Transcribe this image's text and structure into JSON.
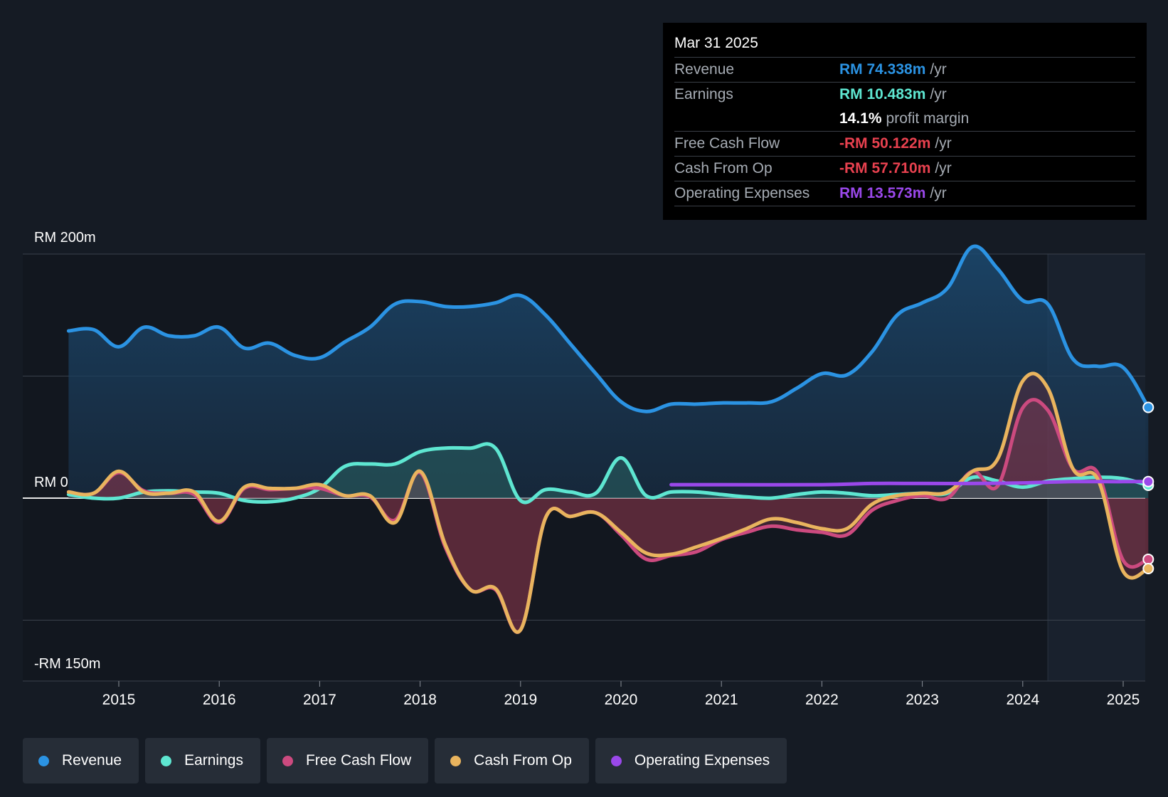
{
  "colors": {
    "revenue": "#2b93e3",
    "earnings": "#5ee6d1",
    "fcf": "#cc4a7f",
    "cfo": "#e9b45e",
    "opex": "#9a48ea",
    "negative": "#e8414f",
    "background": "#151b24"
  },
  "tooltip": {
    "date": "Mar 31 2025",
    "rows": [
      {
        "name": "Revenue",
        "value": "RM 74.338m",
        "unit": "/yr",
        "color_key": "revenue"
      },
      {
        "name": "Earnings",
        "value": "RM 10.483m",
        "unit": "/yr",
        "color_key": "earnings"
      },
      {
        "name": "",
        "value": "14.1%",
        "unit": "profit margin",
        "color_key": "white"
      },
      {
        "name": "Free Cash Flow",
        "value": "-RM 50.122m",
        "unit": "/yr",
        "color_key": "negative"
      },
      {
        "name": "Cash From Op",
        "value": "-RM 57.710m",
        "unit": "/yr",
        "color_key": "negative"
      },
      {
        "name": "Operating Expenses",
        "value": "RM 13.573m",
        "unit": "/yr",
        "color_key": "opex"
      }
    ]
  },
  "legend": [
    {
      "label": "Revenue",
      "color_key": "revenue"
    },
    {
      "label": "Earnings",
      "color_key": "earnings"
    },
    {
      "label": "Free Cash Flow",
      "color_key": "fcf"
    },
    {
      "label": "Cash From Op",
      "color_key": "cfo"
    },
    {
      "label": "Operating Expenses",
      "color_key": "opex"
    }
  ],
  "chart_data": {
    "type": "area",
    "title": "",
    "xlabel": "",
    "ylabel": "",
    "y_axis_labels": {
      "top": "RM 200m",
      "zero": "RM 0",
      "bottom": "-RM 150m"
    },
    "ylim": [
      -150,
      200
    ],
    "xlim": [
      2014.5,
      2025.25
    ],
    "x_ticks": [
      2015,
      2016,
      2017,
      2018,
      2019,
      2020,
      2021,
      2022,
      2023,
      2024,
      2025
    ],
    "x_tick_labels": [
      "2015",
      "2016",
      "2017",
      "2018",
      "2019",
      "2020",
      "2021",
      "2022",
      "2023",
      "2024",
      "2025"
    ],
    "forecast_start": 2024.25,
    "series": [
      {
        "name": "Revenue",
        "key": "revenue",
        "points": [
          [
            2014.5,
            137
          ],
          [
            2014.75,
            138
          ],
          [
            2015.0,
            124
          ],
          [
            2015.25,
            140
          ],
          [
            2015.5,
            133
          ],
          [
            2015.75,
            133
          ],
          [
            2016.0,
            140
          ],
          [
            2016.25,
            123
          ],
          [
            2016.5,
            127
          ],
          [
            2016.75,
            117
          ],
          [
            2017.0,
            115
          ],
          [
            2017.25,
            128
          ],
          [
            2017.5,
            140
          ],
          [
            2017.75,
            159
          ],
          [
            2018.0,
            161
          ],
          [
            2018.25,
            157
          ],
          [
            2018.5,
            157
          ],
          [
            2018.75,
            160
          ],
          [
            2019.0,
            166
          ],
          [
            2019.25,
            150
          ],
          [
            2019.5,
            126
          ],
          [
            2019.75,
            102
          ],
          [
            2020.0,
            79
          ],
          [
            2020.25,
            71
          ],
          [
            2020.5,
            77
          ],
          [
            2020.75,
            77
          ],
          [
            2021.0,
            78
          ],
          [
            2021.25,
            78
          ],
          [
            2021.5,
            79
          ],
          [
            2021.75,
            90
          ],
          [
            2022.0,
            102
          ],
          [
            2022.25,
            101
          ],
          [
            2022.5,
            120
          ],
          [
            2022.75,
            150
          ],
          [
            2023.0,
            160
          ],
          [
            2023.25,
            172
          ],
          [
            2023.5,
            206
          ],
          [
            2023.75,
            188
          ],
          [
            2024.0,
            162
          ],
          [
            2024.25,
            159
          ],
          [
            2024.5,
            114
          ],
          [
            2024.75,
            108
          ],
          [
            2025.0,
            107
          ],
          [
            2025.25,
            74.338
          ]
        ]
      },
      {
        "name": "Earnings",
        "key": "earnings",
        "points": [
          [
            2014.5,
            3
          ],
          [
            2014.75,
            0
          ],
          [
            2015.0,
            0
          ],
          [
            2015.25,
            5
          ],
          [
            2015.5,
            6
          ],
          [
            2015.75,
            5
          ],
          [
            2016.0,
            4
          ],
          [
            2016.25,
            -2
          ],
          [
            2016.5,
            -3
          ],
          [
            2016.75,
            0
          ],
          [
            2017.0,
            8
          ],
          [
            2017.25,
            26
          ],
          [
            2017.5,
            28
          ],
          [
            2017.75,
            28
          ],
          [
            2018.0,
            38
          ],
          [
            2018.25,
            41
          ],
          [
            2018.5,
            41
          ],
          [
            2018.75,
            41
          ],
          [
            2019.0,
            -2
          ],
          [
            2019.25,
            7
          ],
          [
            2019.5,
            5
          ],
          [
            2019.75,
            4
          ],
          [
            2020.0,
            33
          ],
          [
            2020.25,
            2
          ],
          [
            2020.5,
            5
          ],
          [
            2020.75,
            5
          ],
          [
            2021.0,
            3
          ],
          [
            2021.25,
            1
          ],
          [
            2021.5,
            0
          ],
          [
            2021.75,
            3
          ],
          [
            2022.0,
            5
          ],
          [
            2022.25,
            4
          ],
          [
            2022.5,
            2
          ],
          [
            2022.75,
            3
          ],
          [
            2023.0,
            4
          ],
          [
            2023.25,
            4
          ],
          [
            2023.5,
            17
          ],
          [
            2023.75,
            14
          ],
          [
            2024.0,
            9
          ],
          [
            2024.25,
            14
          ],
          [
            2024.5,
            16
          ],
          [
            2024.75,
            17
          ],
          [
            2025.0,
            16
          ],
          [
            2025.25,
            10.483
          ]
        ]
      },
      {
        "name": "Free Cash Flow",
        "key": "fcf",
        "points": [
          [
            2014.5,
            5
          ],
          [
            2014.75,
            4
          ],
          [
            2015.0,
            21
          ],
          [
            2015.25,
            6
          ],
          [
            2015.5,
            4
          ],
          [
            2015.75,
            3
          ],
          [
            2016.0,
            -20
          ],
          [
            2016.25,
            8
          ],
          [
            2016.5,
            7
          ],
          [
            2016.75,
            8
          ],
          [
            2017.0,
            8
          ],
          [
            2017.25,
            2
          ],
          [
            2017.5,
            1
          ],
          [
            2017.75,
            -18
          ],
          [
            2018.0,
            21
          ],
          [
            2018.25,
            -40
          ],
          [
            2018.5,
            -75
          ],
          [
            2018.75,
            -75
          ],
          [
            2019.0,
            -108
          ],
          [
            2019.25,
            -16
          ],
          [
            2019.5,
            -15
          ],
          [
            2019.75,
            -12
          ],
          [
            2020.0,
            -30
          ],
          [
            2020.25,
            -50
          ],
          [
            2020.5,
            -47
          ],
          [
            2020.75,
            -44
          ],
          [
            2021.0,
            -34
          ],
          [
            2021.25,
            -28
          ],
          [
            2021.5,
            -23
          ],
          [
            2021.75,
            -26
          ],
          [
            2022.0,
            -28
          ],
          [
            2022.25,
            -30
          ],
          [
            2022.5,
            -10
          ],
          [
            2022.75,
            -2
          ],
          [
            2023.0,
            2
          ],
          [
            2023.25,
            0
          ],
          [
            2023.5,
            22
          ],
          [
            2023.75,
            10
          ],
          [
            2024.0,
            74
          ],
          [
            2024.25,
            72
          ],
          [
            2024.5,
            24
          ],
          [
            2024.75,
            20
          ],
          [
            2025.0,
            -51
          ],
          [
            2025.25,
            -50.122
          ]
        ]
      },
      {
        "name": "Cash From Op",
        "key": "cfo",
        "points": [
          [
            2014.5,
            5
          ],
          [
            2014.75,
            4
          ],
          [
            2015.0,
            22
          ],
          [
            2015.25,
            5
          ],
          [
            2015.5,
            4
          ],
          [
            2015.75,
            5
          ],
          [
            2016.0,
            -19
          ],
          [
            2016.25,
            9
          ],
          [
            2016.5,
            8
          ],
          [
            2016.75,
            8
          ],
          [
            2017.0,
            11
          ],
          [
            2017.25,
            2
          ],
          [
            2017.5,
            2
          ],
          [
            2017.75,
            -20
          ],
          [
            2018.0,
            22
          ],
          [
            2018.25,
            -38
          ],
          [
            2018.5,
            -75
          ],
          [
            2018.75,
            -74
          ],
          [
            2019.0,
            -108
          ],
          [
            2019.25,
            -16
          ],
          [
            2019.5,
            -15
          ],
          [
            2019.75,
            -12
          ],
          [
            2020.0,
            -28
          ],
          [
            2020.25,
            -45
          ],
          [
            2020.5,
            -46
          ],
          [
            2020.75,
            -40
          ],
          [
            2021.0,
            -33
          ],
          [
            2021.25,
            -25
          ],
          [
            2021.5,
            -17
          ],
          [
            2021.75,
            -20
          ],
          [
            2022.0,
            -25
          ],
          [
            2022.25,
            -25
          ],
          [
            2022.5,
            -5
          ],
          [
            2022.75,
            2
          ],
          [
            2023.0,
            4
          ],
          [
            2023.25,
            5
          ],
          [
            2023.5,
            22
          ],
          [
            2023.75,
            32
          ],
          [
            2024.0,
            96
          ],
          [
            2024.25,
            90
          ],
          [
            2024.5,
            24
          ],
          [
            2024.75,
            15
          ],
          [
            2025.0,
            -60
          ],
          [
            2025.25,
            -57.71
          ]
        ]
      },
      {
        "name": "Operating Expenses",
        "key": "opex",
        "points": [
          [
            2020.5,
            11
          ],
          [
            2021.0,
            11
          ],
          [
            2022.0,
            11
          ],
          [
            2022.5,
            12
          ],
          [
            2023.0,
            12
          ],
          [
            2023.5,
            12
          ],
          [
            2024.0,
            12.5
          ],
          [
            2024.5,
            13.5
          ],
          [
            2025.0,
            13.5
          ],
          [
            2025.25,
            13.573
          ]
        ]
      }
    ]
  }
}
